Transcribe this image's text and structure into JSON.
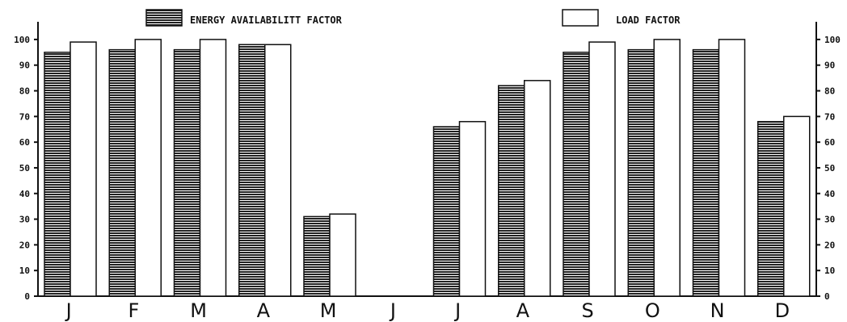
{
  "chart_data": {
    "type": "bar",
    "categories": [
      "J",
      "F",
      "M",
      "A",
      "M",
      "J",
      "J",
      "A",
      "S",
      "O",
      "N",
      "D"
    ],
    "series": [
      {
        "name": "ENERGY AVAILABILITT FACTOR",
        "values": [
          95,
          96,
          96,
          98,
          31,
          null,
          66,
          82,
          95,
          96,
          96,
          68
        ],
        "pattern": "horizontal-hatch",
        "color": "#222222"
      },
      {
        "name": "LOAD FACTOR",
        "values": [
          99,
          100,
          100,
          98,
          32,
          null,
          68,
          84,
          99,
          100,
          100,
          70
        ],
        "pattern": "none",
        "color": "#ffffff"
      }
    ],
    "ylim": [
      0,
      105
    ],
    "yticks": [
      0,
      10,
      20,
      30,
      40,
      50,
      60,
      70,
      80,
      90,
      100
    ],
    "y_axis_sides": [
      "left",
      "right"
    ],
    "legend_position": "top",
    "grid": false,
    "title": "",
    "xlabel": "",
    "ylabel": ""
  }
}
